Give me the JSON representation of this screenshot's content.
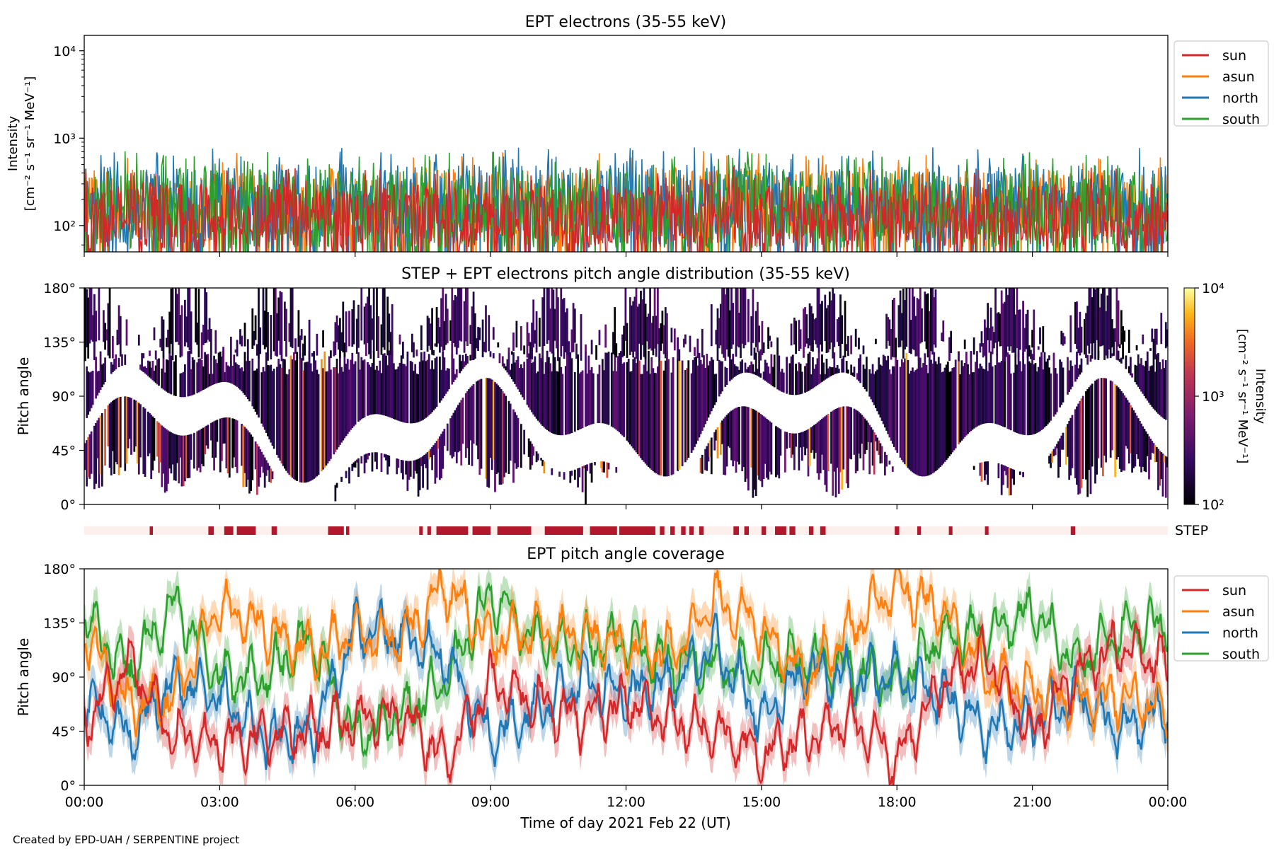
{
  "footer": "Created by EPD-UAH / SERPENTINE project",
  "series_colors": {
    "sun": "#d62728",
    "asun": "#ff7f0e",
    "north": "#1f77b4",
    "south": "#2ca02c"
  },
  "step_color": "#b2182b",
  "step_bg": "#fdf0ec",
  "chart_data": [
    {
      "type": "line",
      "title": "EPT electrons (35-55 keV)",
      "ylabel_line1": "Intensity",
      "ylabel_line2": "[cm⁻² s⁻¹ sr⁻¹ MeV⁻¹]",
      "yscale": "log",
      "ylim": [
        50,
        15000
      ],
      "y_ticks": [
        "10²",
        "10³",
        "10⁴"
      ],
      "x_range_hours": [
        0,
        24
      ],
      "series": [
        {
          "name": "sun",
          "typical_range": [
            55,
            300
          ]
        },
        {
          "name": "asun",
          "typical_range": [
            70,
            450
          ]
        },
        {
          "name": "north",
          "typical_range": [
            60,
            500
          ]
        },
        {
          "name": "south",
          "typical_range": [
            55,
            450
          ]
        }
      ],
      "legend": [
        "sun",
        "asun",
        "north",
        "south"
      ],
      "legend_position": "right"
    },
    {
      "type": "heatmap",
      "title": "STEP + EPT electrons pitch angle distribution (35-55 keV)",
      "ylabel": "Pitch angle",
      "ylim": [
        0,
        180
      ],
      "y_ticks": [
        "0°",
        "45°",
        "90°",
        "135°",
        "180°"
      ],
      "colorbar": {
        "label_line1": "Intensity",
        "label_line2": "[cm⁻² s⁻¹ sr⁻¹ MeV⁻¹]",
        "scale": "log",
        "range": [
          100,
          10000
        ],
        "ticks": [
          "10²",
          "10³",
          "10⁴"
        ]
      }
    },
    {
      "type": "bar",
      "label": "STEP",
      "step_intervals_hours": [
        [
          1.45,
          1.52
        ],
        [
          2.75,
          2.87
        ],
        [
          3.1,
          3.3
        ],
        [
          3.38,
          3.8
        ],
        [
          4.15,
          4.27
        ],
        [
          5.4,
          5.75
        ],
        [
          5.8,
          5.87
        ],
        [
          7.42,
          7.5
        ],
        [
          7.6,
          7.68
        ],
        [
          7.8,
          8.5
        ],
        [
          8.6,
          9.0
        ],
        [
          9.15,
          9.9
        ],
        [
          10.2,
          11.05
        ],
        [
          11.2,
          11.8
        ],
        [
          11.85,
          12.65
        ],
        [
          12.75,
          12.85
        ],
        [
          12.98,
          13.08
        ],
        [
          13.22,
          13.32
        ],
        [
          13.4,
          13.5
        ],
        [
          13.62,
          13.72
        ],
        [
          14.38,
          14.5
        ],
        [
          14.62,
          14.72
        ],
        [
          15.0,
          15.1
        ],
        [
          15.3,
          15.55
        ],
        [
          15.62,
          15.75
        ],
        [
          16.05,
          16.15
        ],
        [
          16.3,
          16.42
        ],
        [
          17.95,
          18.05
        ],
        [
          18.45,
          18.53
        ],
        [
          19.15,
          19.23
        ],
        [
          19.95,
          20.03
        ],
        [
          21.85,
          21.95
        ]
      ]
    },
    {
      "type": "line",
      "title": "EPT pitch angle coverage",
      "ylabel": "Pitch angle",
      "xlabel": "Time of day 2021 Feb 22 (UT)",
      "ylim": [
        0,
        180
      ],
      "y_ticks": [
        "0°",
        "45°",
        "90°",
        "135°",
        "180°"
      ],
      "x_ticks": [
        "00:00",
        "03:00",
        "06:00",
        "09:00",
        "12:00",
        "15:00",
        "18:00",
        "21:00",
        "00:00"
      ],
      "x_range_hours": [
        0,
        24
      ],
      "series": [
        {
          "name": "sun",
          "x": [
            0,
            1,
            2,
            3,
            4,
            5,
            6,
            7,
            8,
            9,
            10,
            11,
            12,
            13,
            14,
            15,
            16,
            17,
            18,
            19,
            20,
            21,
            22,
            23,
            24
          ],
          "y": [
            50,
            105,
            40,
            35,
            40,
            45,
            55,
            60,
            20,
            85,
            70,
            55,
            70,
            55,
            45,
            25,
            40,
            55,
            20,
            85,
            110,
            40,
            95,
            115,
            100
          ]
        },
        {
          "name": "asun",
          "x": [
            0,
            1,
            2,
            3,
            4,
            5,
            6,
            7,
            8,
            9,
            10,
            11,
            12,
            13,
            14,
            15,
            16,
            17,
            18,
            19,
            20,
            21,
            22,
            23,
            24
          ],
          "y": [
            130,
            65,
            75,
            150,
            130,
            110,
            125,
            120,
            165,
            120,
            130,
            125,
            115,
            110,
            155,
            130,
            90,
            130,
            165,
            145,
            90,
            80,
            70,
            75,
            60
          ]
        },
        {
          "name": "north",
          "x": [
            0,
            1,
            2,
            3,
            4,
            5,
            6,
            7,
            8,
            9,
            10,
            11,
            12,
            13,
            14,
            15,
            16,
            17,
            18,
            19,
            20,
            21,
            22,
            23,
            24
          ],
          "y": [
            75,
            40,
            85,
            75,
            40,
            40,
            130,
            125,
            105,
            40,
            60,
            90,
            75,
            85,
            115,
            55,
            95,
            90,
            90,
            75,
            45,
            55,
            75,
            45,
            65
          ]
        },
        {
          "name": "south",
          "x": [
            0,
            1,
            2,
            3,
            4,
            5,
            6,
            7,
            8,
            9,
            10,
            11,
            12,
            13,
            14,
            15,
            16,
            17,
            18,
            19,
            20,
            21,
            22,
            23,
            24
          ],
          "y": [
            140,
            95,
            150,
            90,
            90,
            125,
            40,
            60,
            85,
            160,
            120,
            115,
            120,
            100,
            100,
            100,
            105,
            95,
            85,
            125,
            125,
            145,
            100,
            130,
            135
          ]
        }
      ],
      "legend": [
        "sun",
        "asun",
        "north",
        "south"
      ],
      "legend_position": "right"
    }
  ]
}
